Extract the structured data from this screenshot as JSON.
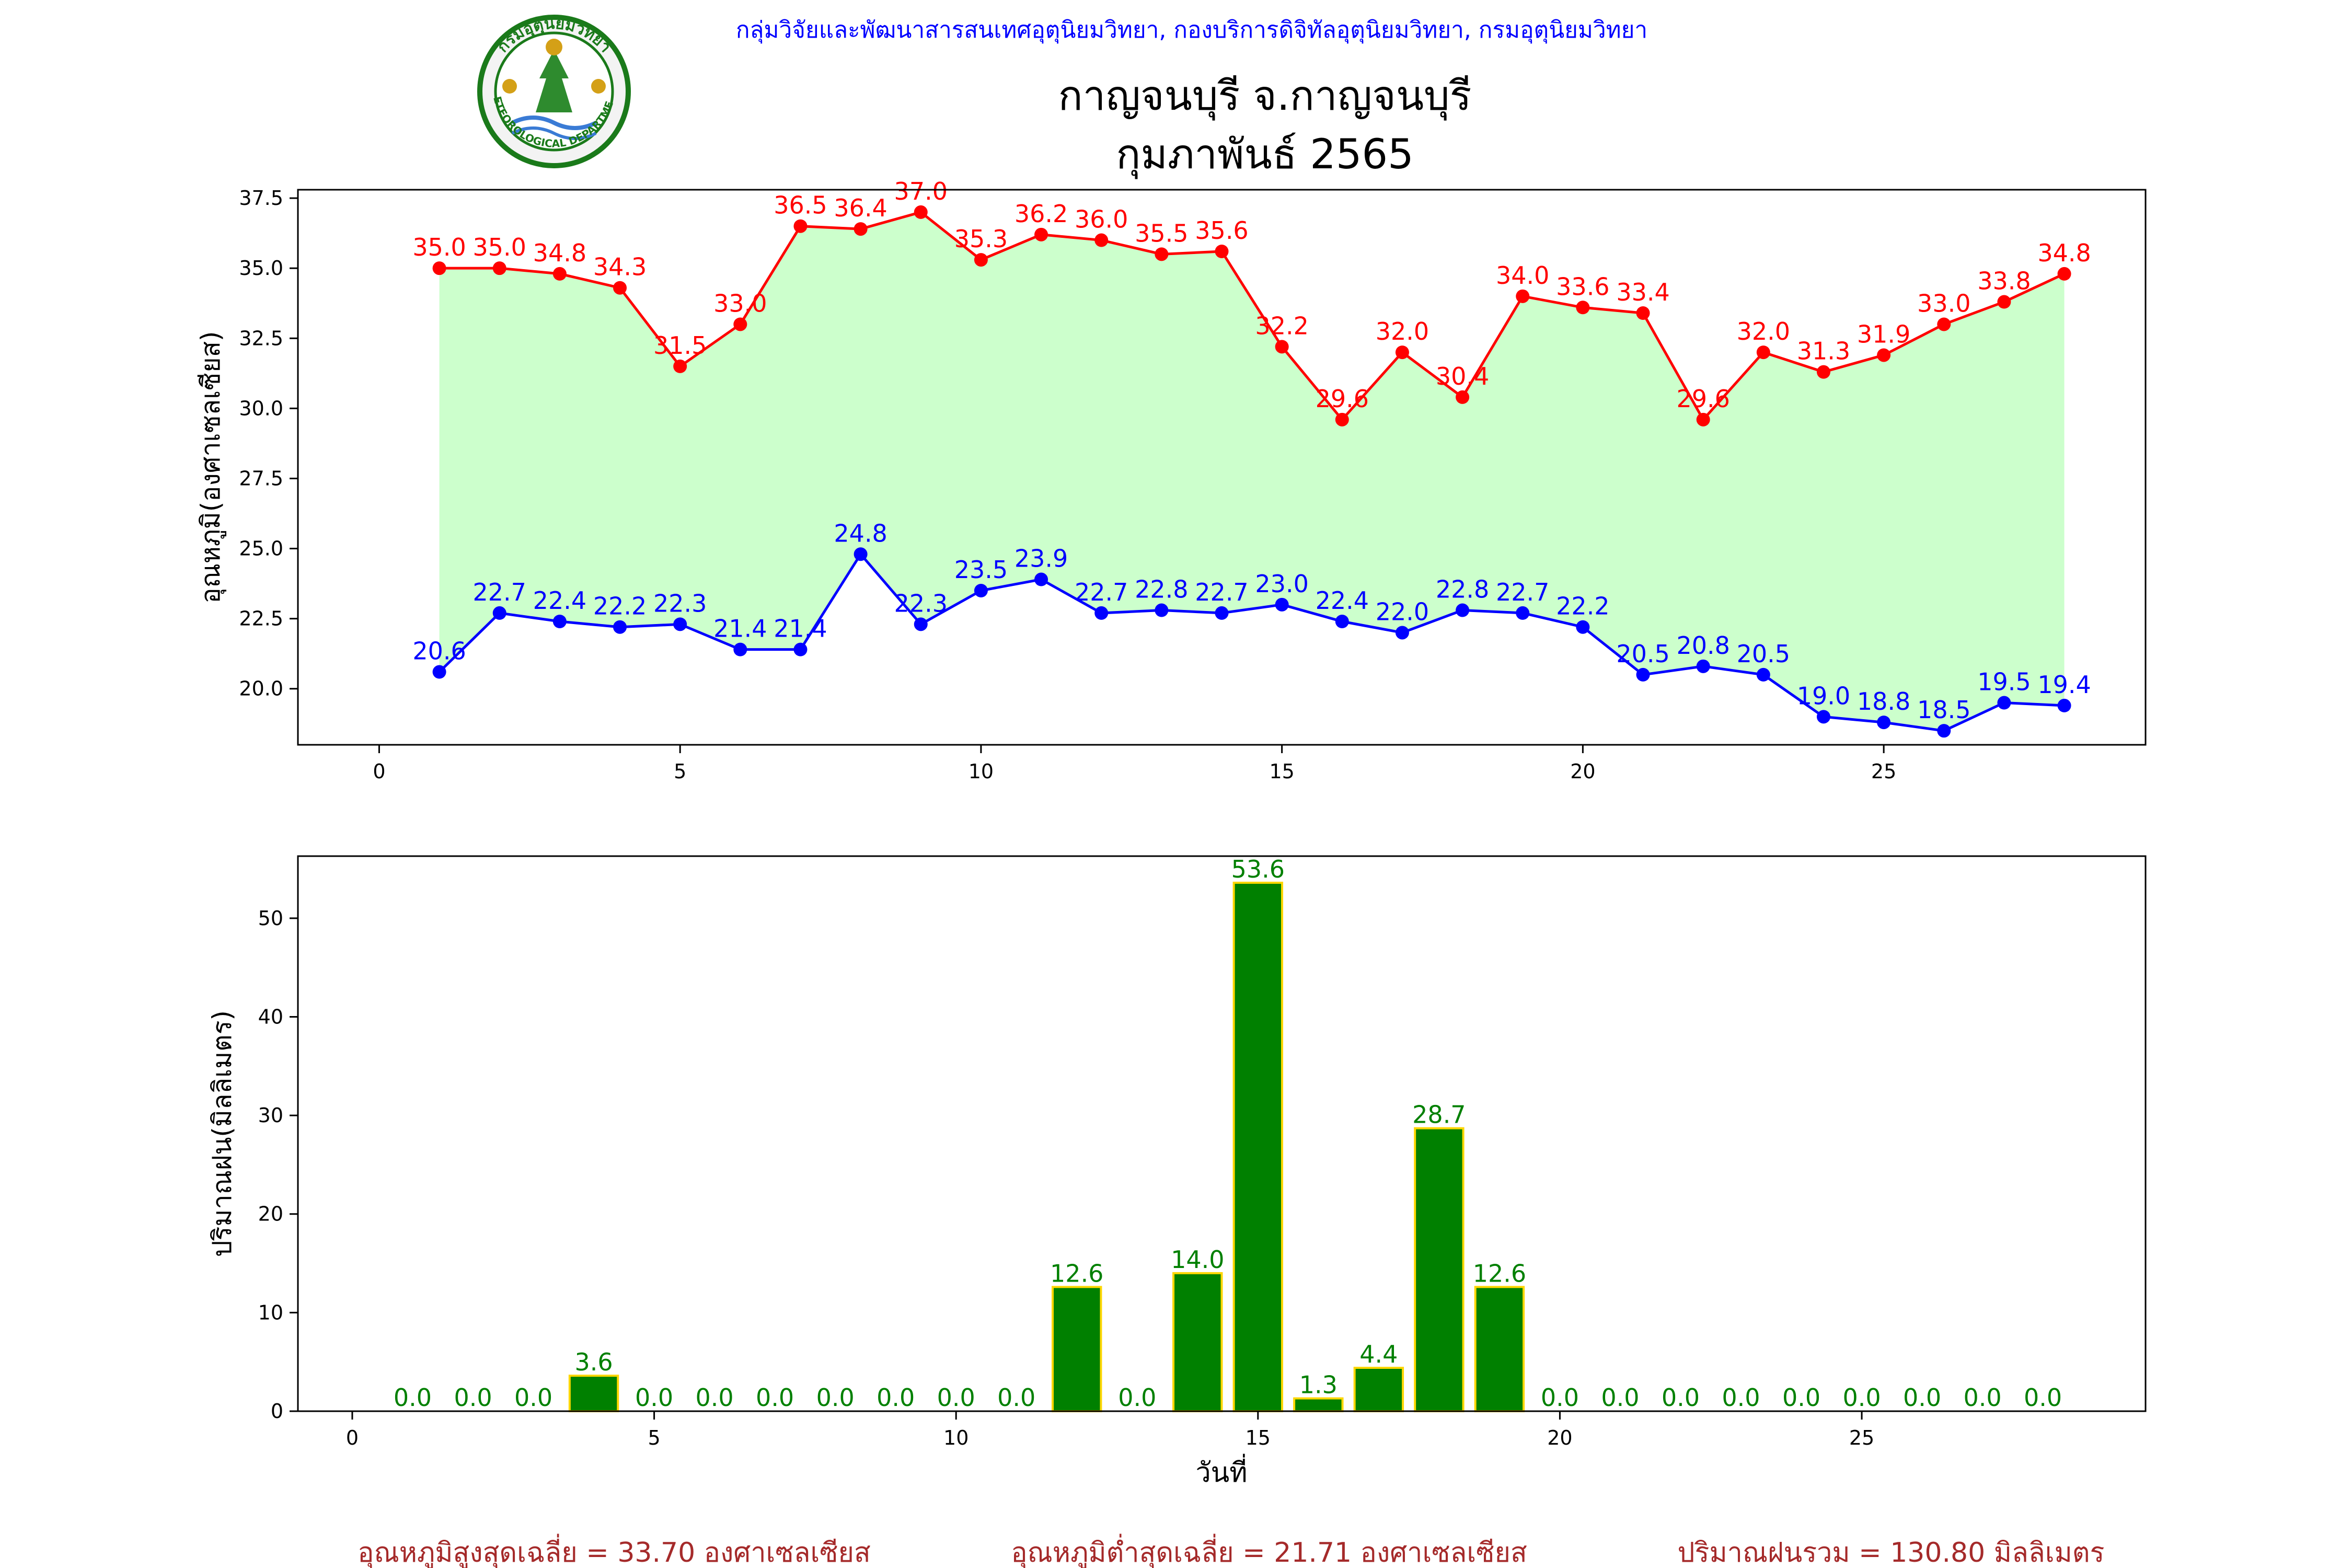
{
  "header": {
    "agency": "กลุ่มวิจัยและพัฒนาสารสนเทศอุตุนิยมวิทยา, กองบริการดิจิทัลอุตุนิยมวิทยา, กรมอุตุนิยมวิทยา",
    "title_line1": "กาญจนบุรี จ.กาญจนบุรี",
    "title_line2": "กุมภาพันธ์ 2565",
    "logo_text_top": "กรมอุตุนิยมวิทยา",
    "logo_text_bottom": "METEOROLOGICAL DEPARTMENT"
  },
  "colors": {
    "tmax": "#ff0000",
    "tmin": "#0000ff",
    "fill": "#ccffcc",
    "rain_bar": "#008000",
    "rain_edge": "#ffd700",
    "rain_label": "#008000",
    "agency_text": "#0000ff",
    "footer_text": "#a52a2a"
  },
  "chart_data": [
    {
      "type": "line",
      "ylabel": "อุณหภูมิ(องศาเซลเซียส)",
      "xlim": [
        -1.35,
        29.35
      ],
      "ylim": [
        18.0,
        37.8
      ],
      "xticks": [
        0,
        5,
        10,
        15,
        20,
        25
      ],
      "yticks": [
        20.0,
        22.5,
        25.0,
        27.5,
        30.0,
        32.5,
        35.0,
        37.5
      ],
      "x": [
        1,
        2,
        3,
        4,
        5,
        6,
        7,
        8,
        9,
        10,
        11,
        12,
        13,
        14,
        15,
        16,
        17,
        18,
        19,
        20,
        21,
        22,
        23,
        24,
        25,
        26,
        27,
        28
      ],
      "series": [
        {
          "key": "tmax",
          "values": [
            35.0,
            35.0,
            34.8,
            34.3,
            31.5,
            33.0,
            36.5,
            36.4,
            37.0,
            35.3,
            36.2,
            36.0,
            35.5,
            35.6,
            32.2,
            29.6,
            32.0,
            30.4,
            34.0,
            33.6,
            33.4,
            29.6,
            32.0,
            31.3,
            31.9,
            33.0,
            33.8,
            34.8
          ]
        },
        {
          "key": "tmin",
          "values": [
            20.6,
            22.7,
            22.4,
            22.2,
            22.3,
            21.4,
            21.4,
            24.8,
            22.3,
            23.5,
            23.9,
            22.7,
            22.8,
            22.7,
            23.0,
            22.4,
            22.0,
            22.8,
            22.7,
            22.2,
            20.5,
            20.8,
            20.5,
            19.0,
            18.8,
            18.5,
            19.5,
            19.4
          ]
        }
      ]
    },
    {
      "type": "bar",
      "ylabel": "ปริมาณฝน(มิลลิเมตร)",
      "xlabel": "วันที่",
      "xlim": [
        -0.9,
        29.7
      ],
      "ylim": [
        0,
        56.3
      ],
      "xticks": [
        0,
        5,
        10,
        15,
        20,
        25
      ],
      "yticks": [
        0,
        10,
        20,
        30,
        40,
        50
      ],
      "x": [
        1,
        2,
        3,
        4,
        5,
        6,
        7,
        8,
        9,
        10,
        11,
        12,
        13,
        14,
        15,
        16,
        17,
        18,
        19,
        20,
        21,
        22,
        23,
        24,
        25,
        26,
        27,
        28
      ],
      "values": [
        0.0,
        0.0,
        0.0,
        3.6,
        0.0,
        0.0,
        0.0,
        0.0,
        0.0,
        0.0,
        0.0,
        12.6,
        0.0,
        14.0,
        53.6,
        1.3,
        4.4,
        28.7,
        12.6,
        0.0,
        0.0,
        0.0,
        0.0,
        0.0,
        0.0,
        0.0,
        0.0,
        0.0
      ]
    }
  ],
  "footer": {
    "avg_max": "อุณหภูมิสูงสุดเฉลี่ย = 33.70 องศาเซลเซียส",
    "avg_min": "อุณหภูมิต่ำสุดเฉลี่ย = 21.71 องศาเซลเซียส",
    "total_rain": "ปริมาณฝนรวม = 130.80 มิลลิเมตร"
  }
}
